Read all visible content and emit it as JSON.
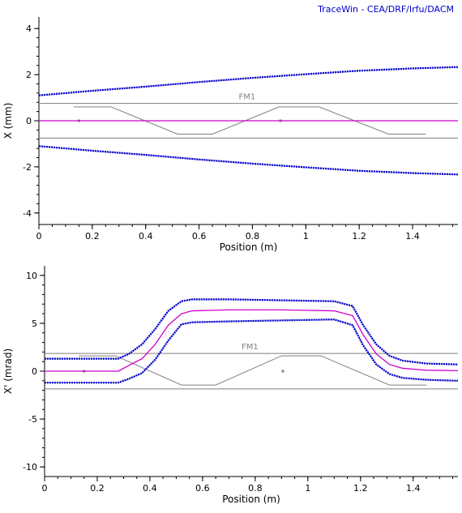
{
  "header": {
    "credit": "TraceWin - CEA/DRF/Irfu/DACM"
  },
  "colors": {
    "envelope": "#0000cc",
    "centroid": "#cc00cc",
    "element": "#7f7f7f",
    "element_label": "#808080",
    "axis": "#000000"
  },
  "chart_data": [
    {
      "type": "line",
      "xlabel": "Position (m)",
      "ylabel": "X (mm)",
      "xlim": [
        0,
        1.57
      ],
      "ylim": [
        -4.5,
        4.5
      ],
      "xticks": [
        0,
        0.2,
        0.4,
        0.6,
        0.8,
        1,
        1.2,
        1.4
      ],
      "xtick_labels": [
        "0",
        "0.2",
        "0.4",
        "0.6",
        "0.8",
        "1",
        "1.2",
        "1.4"
      ],
      "yticks": [
        4,
        2,
        0,
        -2,
        -4
      ],
      "ytick_labels": [
        "4",
        "2",
        "0",
        "-2",
        "-4"
      ],
      "grid": false,
      "element": {
        "label": "FM1",
        "aperture": [
          0.75,
          -0.75
        ],
        "field_shape": {
          "x": [
            0.13,
            0.27,
            0.52,
            0.65,
            0.9,
            1.05,
            1.31,
            1.45
          ],
          "y": [
            0.6,
            0.6,
            -0.58,
            -0.58,
            0.6,
            0.6,
            -0.58,
            -0.58
          ]
        },
        "markers": [
          [
            0.15,
            0
          ],
          [
            0.905,
            0
          ]
        ]
      },
      "series": [
        {
          "role": "envelope-upper",
          "color": "#0000cc",
          "x": [
            0,
            0.2,
            0.4,
            0.6,
            0.8,
            1.0,
            1.2,
            1.4,
            1.57
          ],
          "y": [
            1.1,
            1.3,
            1.48,
            1.68,
            1.86,
            2.02,
            2.17,
            2.27,
            2.33
          ]
        },
        {
          "role": "envelope-lower",
          "color": "#0000cc",
          "x": [
            0,
            0.2,
            0.4,
            0.6,
            0.8,
            1.0,
            1.2,
            1.4,
            1.57
          ],
          "y": [
            -1.1,
            -1.3,
            -1.48,
            -1.68,
            -1.86,
            -2.02,
            -2.17,
            -2.27,
            -2.33
          ]
        },
        {
          "role": "centroid",
          "color": "#cc00cc",
          "x": [
            0,
            1.57
          ],
          "y": [
            0,
            0
          ]
        }
      ]
    },
    {
      "type": "line",
      "xlabel": "Position (m)",
      "ylabel": "X' (mrad)",
      "xlim": [
        0,
        1.57
      ],
      "ylim": [
        -11,
        11
      ],
      "xticks": [
        0,
        0.2,
        0.4,
        0.6,
        0.8,
        1,
        1.2,
        1.4
      ],
      "xtick_labels": [
        "0",
        "0.2",
        "0.4",
        "0.6",
        "0.8",
        "1",
        "1.2",
        "1.4"
      ],
      "yticks": [
        10,
        5,
        0,
        -5,
        -10
      ],
      "ytick_labels": [
        "10",
        "5",
        "0",
        "-5",
        "-10"
      ],
      "grid": false,
      "element": {
        "label": "FM1",
        "aperture": [
          1.85,
          -1.85
        ],
        "field_shape": {
          "x": [
            0.13,
            0.27,
            0.52,
            0.65,
            0.9,
            1.05,
            1.31,
            1.45
          ],
          "y": [
            1.6,
            1.6,
            -1.45,
            -1.45,
            1.6,
            1.6,
            -1.45,
            -1.45
          ]
        },
        "markers": [
          [
            0.15,
            0
          ],
          [
            0.905,
            0
          ]
        ]
      },
      "series": [
        {
          "role": "envelope-upper",
          "color": "#0000cc",
          "x": [
            0,
            0.28,
            0.32,
            0.37,
            0.42,
            0.47,
            0.52,
            0.56,
            0.7,
            0.9,
            1.1,
            1.17,
            1.21,
            1.26,
            1.31,
            1.36,
            1.45,
            1.57
          ],
          "y": [
            1.3,
            1.3,
            1.8,
            2.8,
            4.4,
            6.3,
            7.3,
            7.5,
            7.5,
            7.4,
            7.3,
            6.8,
            4.8,
            2.8,
            1.6,
            1.1,
            0.8,
            0.7
          ]
        },
        {
          "role": "centroid",
          "color": "#cc00cc",
          "x": [
            0,
            0.28,
            0.32,
            0.37,
            0.42,
            0.47,
            0.52,
            0.56,
            0.7,
            0.9,
            1.1,
            1.17,
            1.21,
            1.26,
            1.31,
            1.36,
            1.45,
            1.57
          ],
          "y": [
            0,
            0,
            0.6,
            1.3,
            2.8,
            4.8,
            6.0,
            6.3,
            6.4,
            6.4,
            6.3,
            5.8,
            3.8,
            1.8,
            0.7,
            0.3,
            0.1,
            0.05
          ]
        },
        {
          "role": "envelope-lower",
          "color": "#0000cc",
          "x": [
            0,
            0.28,
            0.32,
            0.37,
            0.42,
            0.47,
            0.52,
            0.56,
            0.7,
            0.9,
            1.1,
            1.17,
            1.21,
            1.26,
            1.31,
            1.36,
            1.45,
            1.57
          ],
          "y": [
            -1.2,
            -1.2,
            -0.8,
            -0.2,
            1.2,
            3.2,
            4.9,
            5.1,
            5.2,
            5.3,
            5.4,
            4.8,
            2.7,
            0.7,
            -0.3,
            -0.7,
            -0.9,
            -1.0
          ]
        }
      ]
    }
  ]
}
